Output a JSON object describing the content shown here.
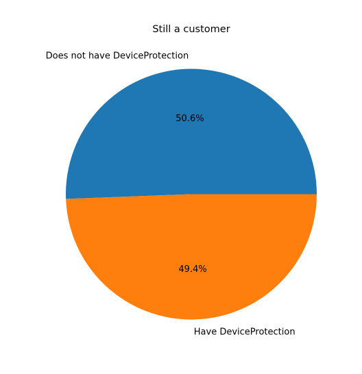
{
  "chart_data": {
    "type": "pie",
    "title": "Still a customer",
    "slices": [
      {
        "label": "Does not have DeviceProtection",
        "value": 50.6,
        "pct_label": "50.6%",
        "color": "#1f77b4"
      },
      {
        "label": "Have DeviceProtection",
        "value": 49.4,
        "pct_label": "49.4%",
        "color": "#ff7f0e"
      }
    ]
  }
}
